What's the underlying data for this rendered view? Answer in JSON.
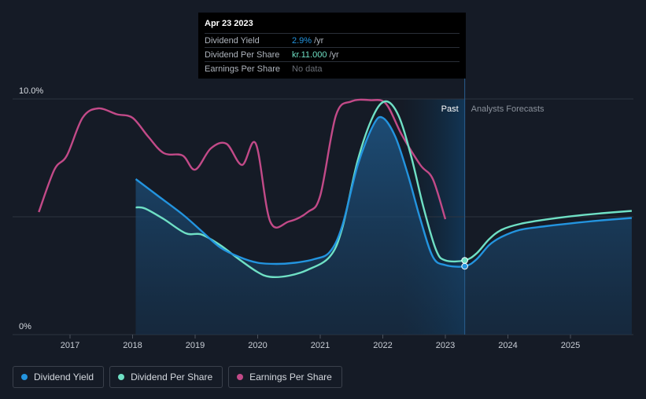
{
  "chart_data": {
    "type": "line",
    "y_ticks": [
      {
        "label": "10.0%",
        "value": 10
      },
      {
        "label": "0%",
        "value": 0
      }
    ],
    "x_ticks": [
      "2017",
      "2018",
      "2019",
      "2020",
      "2021",
      "2022",
      "2023",
      "2024",
      "2025"
    ],
    "ylim": [
      0,
      10
    ],
    "regions": {
      "past_label": "Past",
      "forecast_label": "Analysts Forecasts",
      "divider_date": 2023.31
    },
    "series": [
      {
        "name": "Dividend Yield",
        "color": "#2394df",
        "points": [
          [
            2018.05,
            6.6
          ],
          [
            2018.4,
            5.9
          ],
          [
            2018.8,
            5.1
          ],
          [
            2019.1,
            4.4
          ],
          [
            2019.4,
            3.7
          ],
          [
            2019.7,
            3.3
          ],
          [
            2020.0,
            3.05
          ],
          [
            2020.3,
            3.0
          ],
          [
            2020.6,
            3.05
          ],
          [
            2020.9,
            3.2
          ],
          [
            2021.15,
            3.5
          ],
          [
            2021.35,
            4.6
          ],
          [
            2021.6,
            7.2
          ],
          [
            2021.85,
            8.9
          ],
          [
            2022.0,
            9.2
          ],
          [
            2022.2,
            8.4
          ],
          [
            2022.4,
            6.8
          ],
          [
            2022.6,
            4.9
          ],
          [
            2022.8,
            3.3
          ],
          [
            2023.0,
            2.95
          ],
          [
            2023.31,
            2.9
          ],
          [
            2023.5,
            3.2
          ],
          [
            2023.7,
            3.8
          ],
          [
            2023.9,
            4.15
          ],
          [
            2024.2,
            4.45
          ],
          [
            2024.6,
            4.6
          ],
          [
            2025.0,
            4.72
          ],
          [
            2025.5,
            4.85
          ],
          [
            2025.98,
            4.95
          ]
        ]
      },
      {
        "name": "Dividend Per Share",
        "color": "#6fe0c5",
        "points": [
          [
            2018.05,
            5.4
          ],
          [
            2018.2,
            5.35
          ],
          [
            2018.5,
            4.9
          ],
          [
            2018.85,
            4.3
          ],
          [
            2019.1,
            4.25
          ],
          [
            2019.4,
            3.8
          ],
          [
            2019.7,
            3.2
          ],
          [
            2020.0,
            2.65
          ],
          [
            2020.2,
            2.45
          ],
          [
            2020.5,
            2.5
          ],
          [
            2020.8,
            2.75
          ],
          [
            2021.15,
            3.3
          ],
          [
            2021.35,
            4.5
          ],
          [
            2021.6,
            7.4
          ],
          [
            2021.85,
            9.3
          ],
          [
            2022.05,
            9.9
          ],
          [
            2022.25,
            9.3
          ],
          [
            2022.45,
            7.6
          ],
          [
            2022.65,
            5.4
          ],
          [
            2022.85,
            3.6
          ],
          [
            2023.0,
            3.15
          ],
          [
            2023.31,
            3.15
          ],
          [
            2023.5,
            3.45
          ],
          [
            2023.7,
            4.05
          ],
          [
            2023.9,
            4.45
          ],
          [
            2024.2,
            4.7
          ],
          [
            2024.6,
            4.88
          ],
          [
            2025.0,
            5.02
          ],
          [
            2025.5,
            5.15
          ],
          [
            2025.98,
            5.25
          ]
        ]
      },
      {
        "name": "Earnings Per Share",
        "color": "#c24a88",
        "points": [
          [
            2016.5,
            5.2
          ],
          [
            2016.75,
            7.0
          ],
          [
            2016.95,
            7.6
          ],
          [
            2017.2,
            9.2
          ],
          [
            2017.45,
            9.6
          ],
          [
            2017.75,
            9.35
          ],
          [
            2018.0,
            9.2
          ],
          [
            2018.25,
            8.4
          ],
          [
            2018.5,
            7.7
          ],
          [
            2018.8,
            7.6
          ],
          [
            2019.0,
            7.0
          ],
          [
            2019.25,
            7.9
          ],
          [
            2019.5,
            8.1
          ],
          [
            2019.75,
            7.2
          ],
          [
            2019.97,
            8.1
          ],
          [
            2020.2,
            4.8
          ],
          [
            2020.5,
            4.8
          ],
          [
            2020.8,
            5.2
          ],
          [
            2021.0,
            5.9
          ],
          [
            2021.25,
            9.3
          ],
          [
            2021.5,
            9.9
          ],
          [
            2021.8,
            9.95
          ],
          [
            2022.05,
            9.8
          ],
          [
            2022.3,
            8.5
          ],
          [
            2022.6,
            7.2
          ],
          [
            2022.8,
            6.6
          ],
          [
            2023.0,
            4.9
          ]
        ]
      }
    ],
    "highlight_markers": [
      {
        "series": "Dividend Yield",
        "x": 2023.31,
        "y": 2.9
      },
      {
        "series": "Dividend Per Share",
        "x": 2023.31,
        "y": 3.15
      }
    ],
    "grid": true,
    "legend_position": "bottom-left"
  },
  "tooltip": {
    "date": "Apr 23 2023",
    "rows": [
      {
        "name": "Dividend Yield",
        "value": "2.9%",
        "unit": "/yr",
        "color": "#2394df"
      },
      {
        "name": "Dividend Per Share",
        "value": "kr.11.000",
        "unit": "/yr",
        "color": "#6fe0c5"
      },
      {
        "name": "Earnings Per Share",
        "value": "No data",
        "unit": ""
      }
    ]
  },
  "legend": [
    {
      "label": "Dividend Yield",
      "color": "#2394df"
    },
    {
      "label": "Dividend Per Share",
      "color": "#6fe0c5"
    },
    {
      "label": "Earnings Per Share",
      "color": "#c24a88"
    }
  ]
}
